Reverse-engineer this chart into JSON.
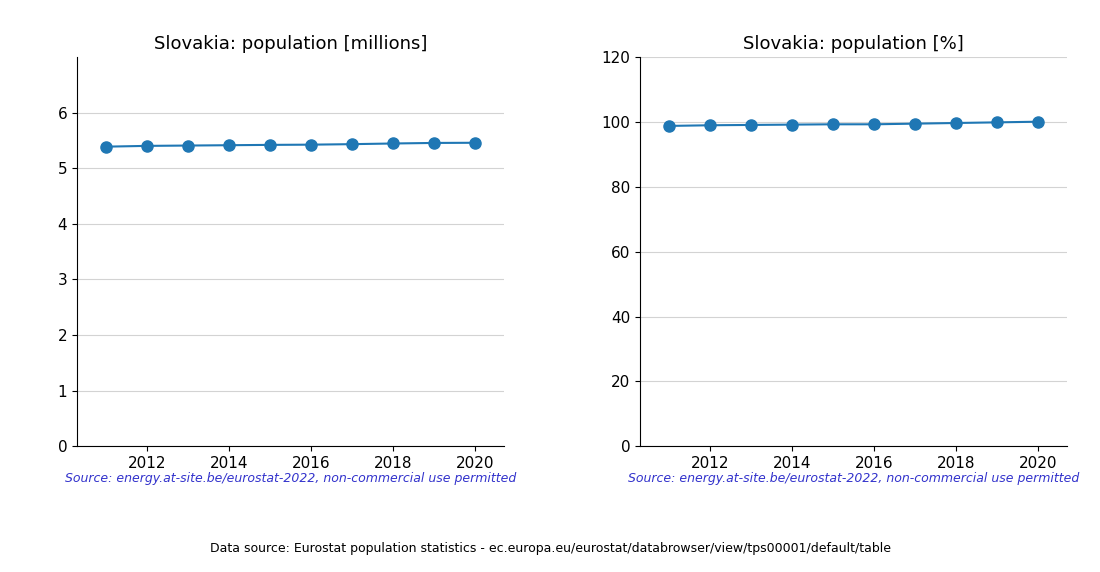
{
  "years": [
    2011,
    2012,
    2013,
    2014,
    2015,
    2016,
    2017,
    2018,
    2019,
    2020
  ],
  "population_millions": [
    5.39,
    5.404,
    5.41,
    5.416,
    5.422,
    5.426,
    5.435,
    5.447,
    5.457,
    5.46
  ],
  "population_percent": [
    98.8,
    99.0,
    99.1,
    99.2,
    99.3,
    99.3,
    99.5,
    99.7,
    99.9,
    100.1
  ],
  "title_millions": "Slovakia: population [millions]",
  "title_percent": "Slovakia: population [%]",
  "source_text": "Source: energy.at-site.be/eurostat-2022, non-commercial use permitted",
  "footer_text": "Data source: Eurostat population statistics - ec.europa.eu/eurostat/databrowser/view/tps00001/default/table",
  "line_color": "#1f77b4",
  "source_color": "#3333cc",
  "footer_color": "#000000",
  "ylim_millions": [
    0,
    7
  ],
  "ylim_percent": [
    0,
    120
  ],
  "yticks_millions": [
    0,
    1,
    2,
    3,
    4,
    5,
    6
  ],
  "yticks_percent": [
    0,
    20,
    40,
    60,
    80,
    100,
    120
  ],
  "marker_size": 8,
  "line_width": 1.5,
  "xlim": [
    2010.3,
    2020.7
  ],
  "xticks": [
    2012,
    2014,
    2016,
    2018,
    2020
  ]
}
